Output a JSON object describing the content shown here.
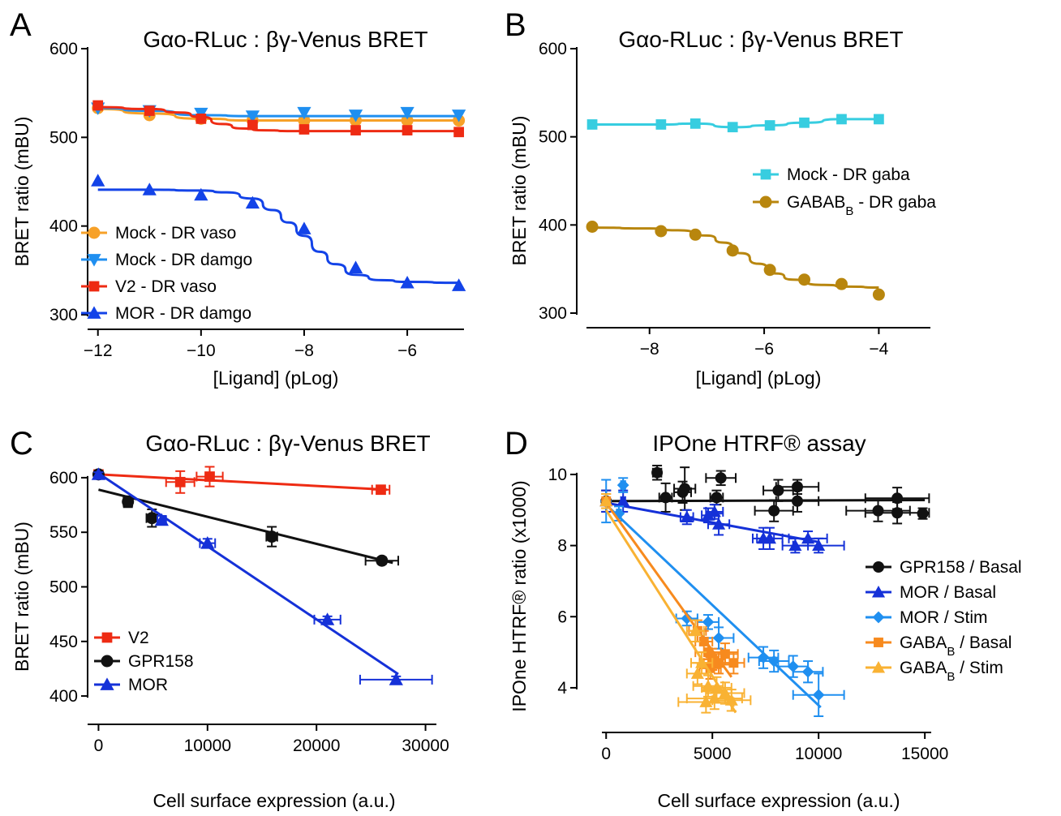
{
  "chart_data": [
    {
      "panel": "A",
      "type": "line",
      "title": "Gαo-RLuc : βγ-Venus BRET",
      "xlabel": "[Ligand] (pLog)",
      "ylabel": "BRET ratio (mBU)",
      "xlim": [
        -12.2,
        -4.9
      ],
      "ylim": [
        300,
        600
      ],
      "xticks": [
        -12,
        -10,
        -8,
        -6
      ],
      "yticks": [
        300,
        400,
        500,
        600
      ],
      "legend_position": "bottom-left",
      "series": [
        {
          "name": "Mock - DR vaso",
          "color": "#f7a128",
          "marker": "circle",
          "x": [
            -12,
            -11,
            -10,
            -9,
            -8,
            -7,
            -6,
            -5
          ],
          "y": [
            533,
            525,
            521,
            519,
            519,
            519,
            519,
            519
          ],
          "fit_x": [
            -12,
            -11,
            -10,
            -9,
            -8,
            -7,
            -6,
            -5
          ],
          "fit_y": [
            532,
            527,
            521,
            519,
            519,
            519,
            519,
            519
          ]
        },
        {
          "name": "Mock - DR damgo",
          "color": "#1f8ff0",
          "marker": "triangle-down",
          "x": [
            -12,
            -11,
            -10,
            -9,
            -8,
            -7,
            -6,
            -5
          ],
          "y": [
            533,
            530,
            527,
            524,
            528,
            525,
            528,
            525
          ],
          "fit_x": [
            -12,
            -11,
            -10,
            -9,
            -8,
            -7,
            -6,
            -5
          ],
          "fit_y": [
            533,
            530,
            525,
            524,
            524,
            524,
            524,
            524
          ]
        },
        {
          "name": "V2 - DR vaso",
          "color": "#ee2b13",
          "marker": "square",
          "x": [
            -12,
            -11,
            -10,
            -9,
            -8,
            -7,
            -6,
            -5
          ],
          "y": [
            536,
            530,
            521,
            514,
            509,
            508,
            508,
            506
          ],
          "fit_x": [
            -12,
            -11,
            -10.4,
            -10,
            -9.6,
            -9.2,
            -8.8,
            -8.2,
            -7.5,
            -6.5,
            -5
          ],
          "fit_y": [
            534,
            532,
            528,
            523,
            515,
            510,
            508,
            507,
            507,
            507,
            507
          ]
        },
        {
          "name": "MOR - DR damgo",
          "color": "#1343e8",
          "marker": "triangle-up",
          "x": [
            -12,
            -11,
            -10,
            -9,
            -8,
            -7,
            -6,
            -5
          ],
          "y": [
            451,
            441,
            435,
            426,
            397,
            353,
            336,
            333
          ],
          "fit_x": [
            -12,
            -11,
            -10,
            -9.5,
            -9,
            -8.6,
            -8.3,
            -8,
            -7.7,
            -7.4,
            -7,
            -6.5,
            -6,
            -5
          ],
          "fit_y": [
            441,
            441,
            440,
            438,
            431,
            418,
            404,
            389,
            371,
            357,
            345,
            339,
            337,
            336
          ]
        }
      ]
    },
    {
      "panel": "B",
      "type": "line",
      "title": "Gαo-RLuc : βγ-Venus BRET",
      "xlabel": "[Ligand] (pLog)",
      "ylabel": "BRET ratio (mBU)",
      "xlim": [
        -9.1,
        -3.1
      ],
      "ylim": [
        300,
        600
      ],
      "xticks": [
        -8,
        -6,
        -4
      ],
      "yticks": [
        300,
        400,
        500,
        600
      ],
      "legend_position": "middle-right",
      "series": [
        {
          "name": "Mock - DR gaba",
          "color": "#37cde0",
          "marker": "square",
          "x": [
            -9,
            -7.8,
            -7.2,
            -6.55,
            -5.9,
            -5.3,
            -4.65,
            -4
          ],
          "y": [
            514,
            514,
            515,
            511,
            513,
            516,
            520,
            520
          ],
          "fit_x": [
            -9,
            -7.8,
            -7.2,
            -6.55,
            -5.9,
            -5.3,
            -4.65,
            -4
          ],
          "fit_y": [
            514,
            514,
            515,
            511,
            513,
            516,
            520,
            520
          ]
        },
        {
          "name": "GABAB",
          "name_sub": "B",
          "name_suffix": " - DR gaba",
          "color": "#b8860e",
          "marker": "circle",
          "x": [
            -9,
            -7.8,
            -7.2,
            -6.55,
            -5.9,
            -5.3,
            -4.65,
            -4
          ],
          "y": [
            398,
            393,
            389,
            371,
            349,
            338,
            333,
            321
          ],
          "fit_x": [
            -9,
            -8,
            -7.5,
            -7,
            -6.7,
            -6.4,
            -6.1,
            -5.8,
            -5.5,
            -5,
            -4.5,
            -4
          ],
          "fit_y": [
            397,
            396,
            394,
            388,
            380,
            368,
            356,
            345,
            338,
            332,
            330,
            329
          ]
        }
      ]
    },
    {
      "panel": "C",
      "type": "scatter",
      "title": "Gαo-RLuc : βγ-Venus BRET",
      "xlabel": "Cell surface expression (a.u.)",
      "ylabel": "BRET ratio (mBU)",
      "xlim": [
        -1000,
        31000
      ],
      "ylim": [
        380,
        620
      ],
      "xticks": [
        0,
        10000,
        20000,
        30000
      ],
      "yticks": [
        400,
        450,
        500,
        550,
        600
      ],
      "legend_position": "bottom-left",
      "series": [
        {
          "name": "V2",
          "color": "#ee2b13",
          "marker": "square",
          "points": [
            {
              "x": 0,
              "y": 603,
              "xerr": 0,
              "yerr": 2
            },
            {
              "x": 7500,
              "y": 596,
              "xerr": 1300,
              "yerr": 10
            },
            {
              "x": 10200,
              "y": 601,
              "xerr": 1200,
              "yerr": 9
            },
            {
              "x": 25900,
              "y": 589,
              "xerr": 800,
              "yerr": 3
            }
          ],
          "fit": [
            [
              0,
              603
            ],
            [
              26500,
              589
            ]
          ]
        },
        {
          "name": "GPR158",
          "color": "#111111",
          "marker": "circle",
          "points": [
            {
              "x": 0,
              "y": 603,
              "xerr": 0,
              "yerr": 2
            },
            {
              "x": 2700,
              "y": 578,
              "xerr": 400,
              "yerr": 5
            },
            {
              "x": 4900,
              "y": 563,
              "xerr": 500,
              "yerr": 8
            },
            {
              "x": 15900,
              "y": 546,
              "xerr": 500,
              "yerr": 9
            },
            {
              "x": 26000,
              "y": 524,
              "xerr": 1500,
              "yerr": 3
            }
          ],
          "fit": [
            [
              0,
              589
            ],
            [
              27000,
              522
            ]
          ]
        },
        {
          "name": "MOR",
          "color": "#1531d8",
          "marker": "triangle-up",
          "points": [
            {
              "x": 0,
              "y": 603,
              "xerr": 0,
              "yerr": 2
            },
            {
              "x": 5800,
              "y": 561,
              "xerr": 400,
              "yerr": 4
            },
            {
              "x": 10000,
              "y": 540,
              "xerr": 700,
              "yerr": 4
            },
            {
              "x": 21000,
              "y": 470,
              "xerr": 1200,
              "yerr": 3
            },
            {
              "x": 27300,
              "y": 415,
              "xerr": 3300,
              "yerr": 3
            }
          ],
          "fit": [
            [
              0,
              604
            ],
            [
              27500,
              420
            ]
          ]
        }
      ]
    },
    {
      "panel": "D",
      "type": "scatter",
      "title": "IPOne HTRF® assay",
      "xlabel": "Cell surface expression (a.u.)",
      "ylabel": "IPOne HTRF® ratio (x1000)",
      "xlim": [
        -200,
        15300
      ],
      "ylim": [
        3.2,
        10.5
      ],
      "xticks": [
        0,
        5000,
        10000,
        15000
      ],
      "yticks": [
        4,
        6,
        8,
        10
      ],
      "legend_position": "middle-right",
      "series": [
        {
          "name": "GPR158 / Basal",
          "color": "#111111",
          "marker": "circle",
          "points": [
            {
              "x": 0,
              "y": 9.25,
              "xerr": 0,
              "yerr": 0.3
            },
            {
              "x": 2400,
              "y": 10.05,
              "xerr": 200,
              "yerr": 0.2
            },
            {
              "x": 2800,
              "y": 9.35,
              "xerr": 300,
              "yerr": 0.4
            },
            {
              "x": 3700,
              "y": 9.6,
              "xerr": 500,
              "yerr": 0.6
            },
            {
              "x": 3600,
              "y": 9.5,
              "xerr": 400,
              "yerr": 0.3
            },
            {
              "x": 5200,
              "y": 9.35,
              "xerr": 300,
              "yerr": 0.2
            },
            {
              "x": 5400,
              "y": 9.9,
              "xerr": 700,
              "yerr": 0.2
            },
            {
              "x": 8100,
              "y": 9.55,
              "xerr": 700,
              "yerr": 0.3
            },
            {
              "x": 9000,
              "y": 9.65,
              "xerr": 1000,
              "yerr": 0.2
            },
            {
              "x": 9000,
              "y": 9.25,
              "xerr": 1000,
              "yerr": 0.3
            },
            {
              "x": 7900,
              "y": 8.98,
              "xerr": 900,
              "yerr": 0.3
            },
            {
              "x": 12800,
              "y": 8.98,
              "xerr": 1500,
              "yerr": 0.3
            },
            {
              "x": 13700,
              "y": 8.92,
              "xerr": 1500,
              "yerr": 0.3
            },
            {
              "x": 13700,
              "y": 9.33,
              "xerr": 1500,
              "yerr": 0.3
            },
            {
              "x": 14900,
              "y": 8.9,
              "xerr": 0,
              "yerr": 0.15
            }
          ],
          "fit": [
            [
              0,
              9.25
            ],
            [
              15000,
              9.28
            ]
          ]
        },
        {
          "name": "MOR / Basal",
          "color": "#1531d8",
          "marker": "triangle-up",
          "points": [
            {
              "x": 0,
              "y": 9.25,
              "xerr": 0,
              "yerr": 0.3
            },
            {
              "x": 800,
              "y": 9.25,
              "xerr": 100,
              "yerr": 0.3
            },
            {
              "x": 3800,
              "y": 8.8,
              "xerr": 300,
              "yerr": 0.2
            },
            {
              "x": 4800,
              "y": 8.85,
              "xerr": 300,
              "yerr": 0.2
            },
            {
              "x": 5100,
              "y": 8.95,
              "xerr": 400,
              "yerr": 0.2
            },
            {
              "x": 5300,
              "y": 8.6,
              "xerr": 500,
              "yerr": 0.3
            },
            {
              "x": 7400,
              "y": 8.2,
              "xerr": 500,
              "yerr": 0.3
            },
            {
              "x": 7700,
              "y": 8.2,
              "xerr": 600,
              "yerr": 0.3
            },
            {
              "x": 8900,
              "y": 8.0,
              "xerr": 600,
              "yerr": 0.2
            },
            {
              "x": 9500,
              "y": 8.2,
              "xerr": 900,
              "yerr": 0.2
            },
            {
              "x": 10000,
              "y": 8.0,
              "xerr": 1200,
              "yerr": 0.2
            }
          ],
          "fit": [
            [
              0,
              9.2
            ],
            [
              10000,
              8.1
            ]
          ]
        },
        {
          "name": "MOR / Stim",
          "color": "#1f8ff0",
          "marker": "diamond",
          "points": [
            {
              "x": 0,
              "y": 9.25,
              "xerr": 0,
              "yerr": 0.6
            },
            {
              "x": 800,
              "y": 9.7,
              "xerr": 100,
              "yerr": 0.2
            },
            {
              "x": 600,
              "y": 8.9,
              "xerr": 100,
              "yerr": 0.2
            },
            {
              "x": 3800,
              "y": 5.95,
              "xerr": 500,
              "yerr": 0.2
            },
            {
              "x": 4800,
              "y": 5.85,
              "xerr": 500,
              "yerr": 0.2
            },
            {
              "x": 5300,
              "y": 5.4,
              "xerr": 700,
              "yerr": 0.3
            },
            {
              "x": 7400,
              "y": 4.85,
              "xerr": 700,
              "yerr": 0.3
            },
            {
              "x": 7900,
              "y": 4.75,
              "xerr": 700,
              "yerr": 0.3
            },
            {
              "x": 8800,
              "y": 4.6,
              "xerr": 700,
              "yerr": 0.3
            },
            {
              "x": 9500,
              "y": 4.45,
              "xerr": 700,
              "yerr": 0.3
            },
            {
              "x": 10000,
              "y": 3.8,
              "xerr": 1200,
              "yerr": 0.6
            }
          ],
          "fit": [
            [
              0,
              9.15
            ],
            [
              10100,
              3.45
            ]
          ]
        },
        {
          "name": "GABA",
          "name_sub": "B",
          "name_suffix": " / Basal",
          "color": "#f78a1e",
          "marker": "square",
          "points": [
            {
              "x": 0,
              "y": 9.25,
              "xerr": 0,
              "yerr": 0.2
            },
            {
              "x": 4300,
              "y": 5.6,
              "xerr": 400,
              "yerr": 0.3
            },
            {
              "x": 4600,
              "y": 5.3,
              "xerr": 400,
              "yerr": 0.3
            },
            {
              "x": 4800,
              "y": 5.0,
              "xerr": 600,
              "yerr": 0.3
            },
            {
              "x": 5000,
              "y": 4.8,
              "xerr": 600,
              "yerr": 0.3
            },
            {
              "x": 5300,
              "y": 4.7,
              "xerr": 700,
              "yerr": 0.3
            },
            {
              "x": 5600,
              "y": 4.95,
              "xerr": 600,
              "yerr": 0.3
            },
            {
              "x": 6000,
              "y": 4.7,
              "xerr": 500,
              "yerr": 0.3
            },
            {
              "x": 4900,
              "y": 4.55,
              "xerr": 500,
              "yerr": 0.3
            }
          ],
          "fit": [
            [
              0,
              9.2
            ],
            [
              5900,
              4.3
            ]
          ]
        },
        {
          "name": "GABA",
          "name_sub": "B",
          "name_suffix": " / Stim",
          "color": "#f9b233",
          "marker": "triangle-up",
          "points": [
            {
              "x": 0,
              "y": 9.25,
              "xerr": 0,
              "yerr": 0.2
            },
            {
              "x": 4200,
              "y": 5.6,
              "xerr": 400,
              "yerr": 0.3
            },
            {
              "x": 4500,
              "y": 4.7,
              "xerr": 500,
              "yerr": 0.3
            },
            {
              "x": 4300,
              "y": 4.4,
              "xerr": 500,
              "yerr": 0.3
            },
            {
              "x": 4800,
              "y": 4.05,
              "xerr": 700,
              "yerr": 0.3
            },
            {
              "x": 5200,
              "y": 4.0,
              "xerr": 700,
              "yerr": 0.3
            },
            {
              "x": 5600,
              "y": 3.85,
              "xerr": 900,
              "yerr": 0.3
            },
            {
              "x": 5900,
              "y": 3.65,
              "xerr": 900,
              "yerr": 0.3
            },
            {
              "x": 5100,
              "y": 3.7,
              "xerr": 1300,
              "yerr": 0.3
            },
            {
              "x": 4700,
              "y": 3.6,
              "xerr": 1300,
              "yerr": 0.3
            }
          ],
          "fit": [
            [
              0,
              9.0
            ],
            [
              6100,
              3.3
            ]
          ]
        }
      ]
    }
  ]
}
